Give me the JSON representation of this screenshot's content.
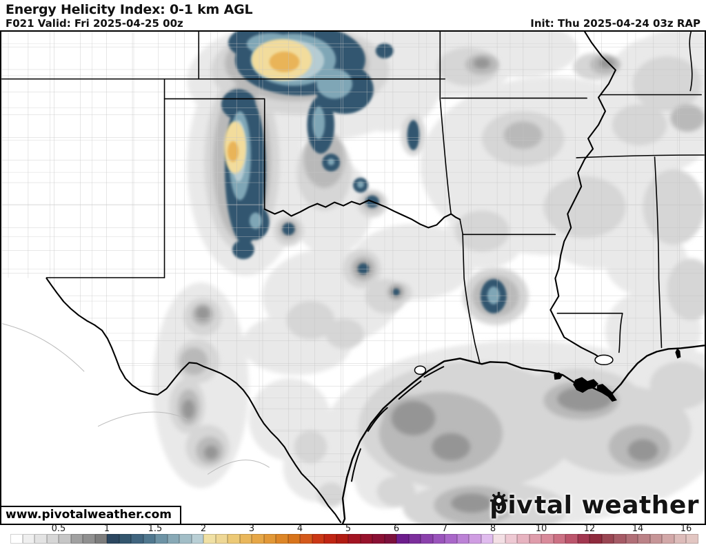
{
  "header": {
    "title": "Energy Helicity Index: 0-1 km AGL",
    "subtitle": "F021 Valid: Fri 2025-04-25 00z",
    "init": "Init: Thu 2025-04-24 03z RAP"
  },
  "map": {
    "watermark": "www.pivotalweather.com",
    "logo": {
      "prefix": "piv",
      "suffix": "tal weather",
      "icon": "gear-icon"
    },
    "regions": [
      "New Mexico",
      "Texas",
      "Oklahoma",
      "Kansas",
      "Missouri",
      "Arkansas",
      "Louisiana",
      "Mississippi",
      "Tennessee",
      "Alabama",
      "Mexico",
      "Gulf of Mexico"
    ],
    "features": [
      {
        "region": "S Kansas / N Oklahoma border",
        "value": "EHI 2-3.5 core (yellow-orange) inside 1-2 (blue) area"
      },
      {
        "region": "E Texas Panhandle",
        "value": "N-S band EHI 1-2 (blue) with 2-3 core (yellow-orange)"
      },
      {
        "region": "W-central Oklahoma",
        "value": "scattered EHI 1-1.5 spots (blue)"
      },
      {
        "region": "N-central Texas / Red River",
        "value": "small EHI ~1 spots (blue)"
      },
      {
        "region": "SW Arkansas / NW Louisiana",
        "value": "EHI 1-1.5 blob (blue)"
      },
      {
        "region": "Gulf of Mexico off TX/LA coast",
        "value": "broad EHI 0.25-1 (gray shading)"
      },
      {
        "region": "NE Mexico / Big Bend",
        "value": "EHI 0.25-0.75 (gray spots)"
      },
      {
        "region": "Arkansas / Mississippi / Tennessee",
        "value": "widespread EHI 0.125-0.5 (light gray)"
      }
    ]
  },
  "palette": {
    "gray_light": "#e9e9e9",
    "gray_med": "#d6d6d6",
    "gray_dark": "#b9b9b9",
    "gray_core": "#959595",
    "blue_dark": "#33566f",
    "blue_light": "#7fa6b6",
    "blue_pale": "#b5ccd3",
    "yellow": "#f2dc9c",
    "orange": "#e9b458",
    "county_line": "#c2c2c2",
    "border_line": "#000000"
  },
  "colorbar": {
    "tick_labels": [
      "0.5",
      "1",
      "1.5",
      "2",
      "3",
      "4",
      "5",
      "6",
      "7",
      "8",
      "10",
      "12",
      "14",
      "16"
    ],
    "colors": [
      "#ffffff",
      "#efefef",
      "#e3e3e3",
      "#d6d6d6",
      "#c6c6c6",
      "#a1a1a1",
      "#909090",
      "#7d7d7d",
      "#2c4760",
      "#33566e",
      "#40657f",
      "#50788f",
      "#6d93a5",
      "#88a9b6",
      "#a2bec7",
      "#b9cfd5",
      "#f0e0a4",
      "#eed795",
      "#ecc976",
      "#e9b75c",
      "#e6a747",
      "#e29837",
      "#dd8627",
      "#d8741b",
      "#d4591b",
      "#cb3815",
      "#c02513",
      "#b11b12",
      "#a31523",
      "#97122c",
      "#8a1034",
      "#7c103c",
      "#6d1d8c",
      "#7c2f9c",
      "#8b41ac",
      "#9a54bc",
      "#a967c9",
      "#bc82d6",
      "#cf9de2",
      "#e0bcee",
      "#f3dfe4",
      "#eec9d3",
      "#e7b3c0",
      "#df9cab",
      "#d98b9b",
      "#cc7184",
      "#bc556c",
      "#a23750",
      "#8f2b3d",
      "#9a4653",
      "#a65b66",
      "#b16f77",
      "#bb8287",
      "#c69597",
      "#d2a8a8",
      "#ddbcba",
      "#e2c6c2"
    ]
  }
}
